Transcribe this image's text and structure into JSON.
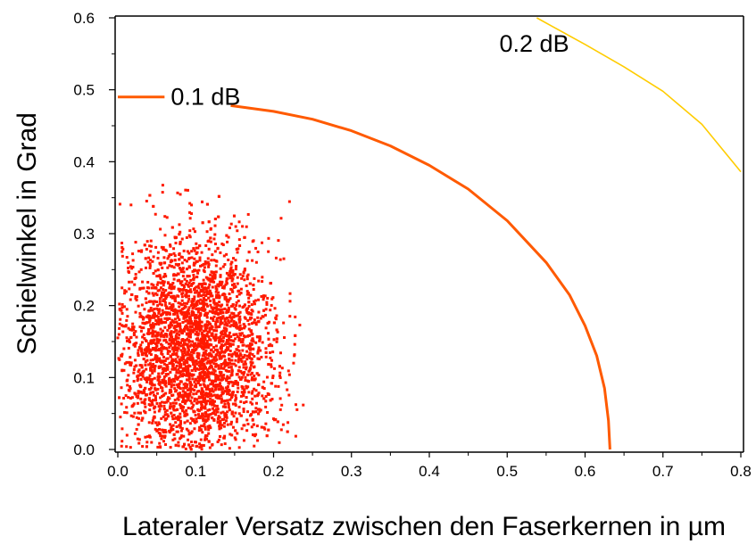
{
  "chart_data": {
    "type": "scatter",
    "title": "",
    "xlabel": "Lateraler Versatz zwischen den Faserkernen in µm",
    "ylabel": "Schielwinkel in Grad",
    "xlim": [
      0.0,
      0.8
    ],
    "ylim": [
      0.0,
      0.6
    ],
    "xticks": [
      "0.0",
      "0.1",
      "0.2",
      "0.3",
      "0.4",
      "0.5",
      "0.6",
      "0.7",
      "0.8"
    ],
    "yticks": [
      "0.0",
      "0.1",
      "0.2",
      "0.3",
      "0.4",
      "0.5",
      "0.6"
    ],
    "grid": false,
    "legend": [
      {
        "name": "0.1 dB",
        "color": "#ff5a00"
      },
      {
        "name": "0.2 dB",
        "color": "#ffcc00"
      }
    ],
    "series": [
      {
        "name": "0.1 dB",
        "kind": "line",
        "color": "#ff5a00",
        "points": [
          [
            0.145,
            0.478
          ],
          [
            0.2,
            0.47
          ],
          [
            0.25,
            0.459
          ],
          [
            0.3,
            0.443
          ],
          [
            0.35,
            0.422
          ],
          [
            0.4,
            0.395
          ],
          [
            0.45,
            0.362
          ],
          [
            0.5,
            0.318
          ],
          [
            0.55,
            0.26
          ],
          [
            0.58,
            0.215
          ],
          [
            0.6,
            0.172
          ],
          [
            0.615,
            0.13
          ],
          [
            0.625,
            0.085
          ],
          [
            0.63,
            0.04
          ],
          [
            0.632,
            0.0
          ]
        ]
      },
      {
        "name": "0.2 dB",
        "kind": "line",
        "color": "#ffcc00",
        "points": [
          [
            0.538,
            0.6
          ],
          [
            0.558,
            0.588
          ],
          [
            0.6,
            0.563
          ],
          [
            0.65,
            0.532
          ],
          [
            0.7,
            0.498
          ],
          [
            0.75,
            0.452
          ],
          [
            0.8,
            0.386
          ]
        ]
      },
      {
        "name": "",
        "kind": "scatter",
        "color": "#ff1a00",
        "n_points": 3600,
        "x_range": [
          0.0,
          0.24
        ],
        "y_range": [
          0.0,
          0.38
        ],
        "x_center": 0.1,
        "y_center": 0.14,
        "x_std": 0.05,
        "y_std": 0.08
      }
    ]
  }
}
